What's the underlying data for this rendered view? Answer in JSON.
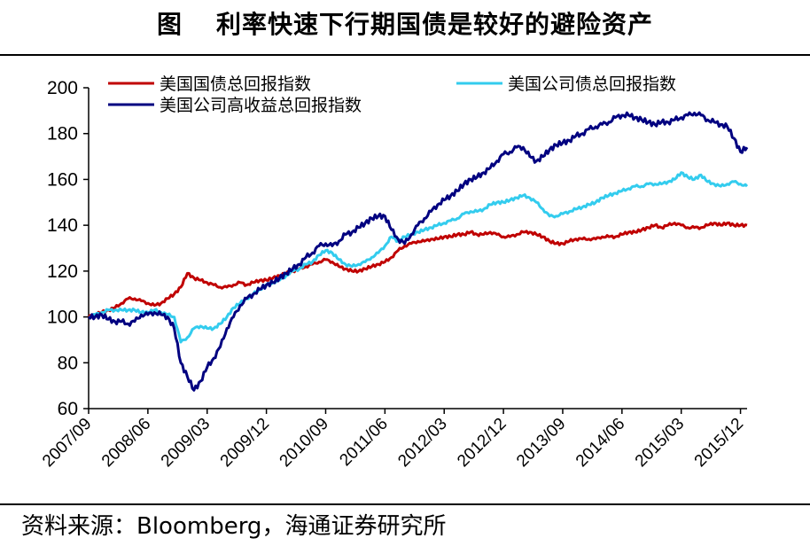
{
  "title": {
    "figure": "图",
    "text": "利率快速下行期国债是较好的避险资产"
  },
  "source": "资料来源：Bloomberg，海通证券研究所",
  "chart_data": {
    "type": "line",
    "title": "利率快速下行期国债是较好的避险资产",
    "xlabel": "",
    "ylabel": "",
    "ylim": [
      60,
      200
    ],
    "yticks": [
      60,
      80,
      100,
      120,
      140,
      160,
      180,
      200
    ],
    "xlim": [
      0,
      100
    ],
    "xtick_labels": [
      "2007/09",
      "2008/06",
      "2009/03",
      "2009/12",
      "2010/09",
      "2011/06",
      "2012/03",
      "2012/12",
      "2013/09",
      "2014/06",
      "2015/03",
      "2015/12"
    ],
    "xtick_months": [
      0,
      9,
      18,
      27,
      36,
      45,
      54,
      63,
      72,
      81,
      90,
      99
    ],
    "x_unit_note": "",
    "legend_position": "top",
    "grid": false,
    "series": [
      {
        "name": "美国国债总回报指数",
        "color": "#c00000",
        "points": [
          [
            0,
            100
          ],
          [
            1,
            101
          ],
          [
            2,
            102
          ],
          [
            3,
            103
          ],
          [
            4,
            104
          ],
          [
            5,
            106
          ],
          [
            6,
            108
          ],
          [
            7,
            108
          ],
          [
            8,
            107
          ],
          [
            9,
            106
          ],
          [
            10,
            105
          ],
          [
            11,
            106
          ],
          [
            12,
            108
          ],
          [
            13,
            110
          ],
          [
            14,
            113
          ],
          [
            15,
            119
          ],
          [
            16,
            117
          ],
          [
            17,
            116
          ],
          [
            18,
            115
          ],
          [
            19,
            114
          ],
          [
            20,
            113
          ],
          [
            21,
            113
          ],
          [
            22,
            114
          ],
          [
            23,
            115
          ],
          [
            24,
            114
          ],
          [
            25,
            115
          ],
          [
            26,
            116
          ],
          [
            27,
            116
          ],
          [
            28,
            117
          ],
          [
            29,
            118
          ],
          [
            30,
            119
          ],
          [
            31,
            120
          ],
          [
            32,
            121
          ],
          [
            33,
            122
          ],
          [
            34,
            123
          ],
          [
            35,
            124
          ],
          [
            36,
            125
          ],
          [
            37,
            124
          ],
          [
            38,
            122
          ],
          [
            39,
            121
          ],
          [
            40,
            120
          ],
          [
            41,
            120
          ],
          [
            42,
            121
          ],
          [
            43,
            122
          ],
          [
            44,
            123
          ],
          [
            45,
            124
          ],
          [
            46,
            126
          ],
          [
            47,
            129
          ],
          [
            48,
            131
          ],
          [
            49,
            132
          ],
          [
            50,
            133
          ],
          [
            51,
            133
          ],
          [
            52,
            134
          ],
          [
            53,
            134
          ],
          [
            54,
            135
          ],
          [
            55,
            135
          ],
          [
            56,
            136
          ],
          [
            57,
            136
          ],
          [
            58,
            137
          ],
          [
            59,
            136
          ],
          [
            60,
            136
          ],
          [
            61,
            137
          ],
          [
            62,
            136
          ],
          [
            63,
            135
          ],
          [
            64,
            135
          ],
          [
            65,
            136
          ],
          [
            66,
            137
          ],
          [
            67,
            137
          ],
          [
            68,
            136
          ],
          [
            69,
            135
          ],
          [
            70,
            133
          ],
          [
            71,
            132
          ],
          [
            72,
            132
          ],
          [
            73,
            133
          ],
          [
            74,
            134
          ],
          [
            75,
            134
          ],
          [
            76,
            134
          ],
          [
            77,
            134
          ],
          [
            78,
            135
          ],
          [
            79,
            135
          ],
          [
            80,
            135
          ],
          [
            81,
            136
          ],
          [
            82,
            137
          ],
          [
            83,
            137
          ],
          [
            84,
            138
          ],
          [
            85,
            139
          ],
          [
            86,
            140
          ],
          [
            87,
            139
          ],
          [
            88,
            140
          ],
          [
            89,
            141
          ],
          [
            90,
            140
          ],
          [
            91,
            139
          ],
          [
            92,
            139
          ],
          [
            93,
            139
          ],
          [
            94,
            140
          ],
          [
            95,
            141
          ],
          [
            96,
            140
          ],
          [
            97,
            141
          ],
          [
            98,
            140
          ],
          [
            99,
            140
          ],
          [
            100,
            140
          ]
        ]
      },
      {
        "name": "美国公司债总回报指数",
        "color": "#33ccee",
        "points": [
          [
            0,
            100
          ],
          [
            1,
            101
          ],
          [
            2,
            102
          ],
          [
            3,
            103
          ],
          [
            4,
            103
          ],
          [
            5,
            103
          ],
          [
            6,
            103
          ],
          [
            7,
            103
          ],
          [
            8,
            102
          ],
          [
            9,
            102
          ],
          [
            10,
            103
          ],
          [
            11,
            102
          ],
          [
            12,
            101
          ],
          [
            13,
            100
          ],
          [
            14,
            89
          ],
          [
            15,
            91
          ],
          [
            16,
            95
          ],
          [
            17,
            96
          ],
          [
            18,
            95
          ],
          [
            19,
            95
          ],
          [
            20,
            97
          ],
          [
            21,
            100
          ],
          [
            22,
            104
          ],
          [
            23,
            106
          ],
          [
            24,
            108
          ],
          [
            25,
            110
          ],
          [
            26,
            112
          ],
          [
            27,
            114
          ],
          [
            28,
            115
          ],
          [
            29,
            116
          ],
          [
            30,
            118
          ],
          [
            31,
            120
          ],
          [
            32,
            121
          ],
          [
            33,
            123
          ],
          [
            34,
            124
          ],
          [
            35,
            127
          ],
          [
            36,
            129
          ],
          [
            37,
            128
          ],
          [
            38,
            125
          ],
          [
            39,
            123
          ],
          [
            40,
            122
          ],
          [
            41,
            123
          ],
          [
            42,
            124
          ],
          [
            43,
            126
          ],
          [
            44,
            128
          ],
          [
            45,
            131
          ],
          [
            46,
            135
          ],
          [
            47,
            133
          ],
          [
            48,
            135
          ],
          [
            49,
            136
          ],
          [
            50,
            137
          ],
          [
            51,
            138
          ],
          [
            52,
            139
          ],
          [
            53,
            140
          ],
          [
            54,
            141
          ],
          [
            55,
            142
          ],
          [
            56,
            143
          ],
          [
            57,
            145
          ],
          [
            58,
            146
          ],
          [
            59,
            146
          ],
          [
            60,
            147
          ],
          [
            61,
            149
          ],
          [
            62,
            150
          ],
          [
            63,
            150
          ],
          [
            64,
            151
          ],
          [
            65,
            152
          ],
          [
            66,
            153
          ],
          [
            67,
            152
          ],
          [
            68,
            150
          ],
          [
            69,
            147
          ],
          [
            70,
            144
          ],
          [
            71,
            144
          ],
          [
            72,
            145
          ],
          [
            73,
            146
          ],
          [
            74,
            147
          ],
          [
            75,
            148
          ],
          [
            76,
            149
          ],
          [
            77,
            150
          ],
          [
            78,
            152
          ],
          [
            79,
            153
          ],
          [
            80,
            154
          ],
          [
            81,
            155
          ],
          [
            82,
            156
          ],
          [
            83,
            157
          ],
          [
            84,
            157
          ],
          [
            85,
            158
          ],
          [
            86,
            158
          ],
          [
            87,
            158
          ],
          [
            88,
            159
          ],
          [
            89,
            160
          ],
          [
            90,
            163
          ],
          [
            91,
            161
          ],
          [
            92,
            160
          ],
          [
            93,
            162
          ],
          [
            94,
            159
          ],
          [
            95,
            158
          ],
          [
            96,
            157
          ],
          [
            97,
            158
          ],
          [
            98,
            159
          ],
          [
            99,
            158
          ],
          [
            100,
            157
          ]
        ]
      },
      {
        "name": "美国公司高收益总回报指数",
        "color": "#000080",
        "points": [
          [
            0,
            100
          ],
          [
            1,
            100
          ],
          [
            2,
            101
          ],
          [
            3,
            99
          ],
          [
            4,
            98
          ],
          [
            5,
            98
          ],
          [
            6,
            97
          ],
          [
            7,
            98
          ],
          [
            8,
            101
          ],
          [
            9,
            101
          ],
          [
            10,
            102
          ],
          [
            11,
            101
          ],
          [
            12,
            100
          ],
          [
            13,
            95
          ],
          [
            14,
            80
          ],
          [
            15,
            74
          ],
          [
            16,
            68
          ],
          [
            17,
            72
          ],
          [
            18,
            78
          ],
          [
            19,
            82
          ],
          [
            20,
            87
          ],
          [
            21,
            95
          ],
          [
            22,
            100
          ],
          [
            23,
            105
          ],
          [
            24,
            108
          ],
          [
            25,
            110
          ],
          [
            26,
            112
          ],
          [
            27,
            114
          ],
          [
            28,
            115
          ],
          [
            29,
            117
          ],
          [
            30,
            119
          ],
          [
            31,
            121
          ],
          [
            32,
            123
          ],
          [
            33,
            126
          ],
          [
            34,
            128
          ],
          [
            35,
            131
          ],
          [
            36,
            132
          ],
          [
            37,
            131
          ],
          [
            38,
            133
          ],
          [
            39,
            136
          ],
          [
            40,
            137
          ],
          [
            41,
            139
          ],
          [
            42,
            141
          ],
          [
            43,
            143
          ],
          [
            44,
            144
          ],
          [
            45,
            144
          ],
          [
            46,
            138
          ],
          [
            47,
            134
          ],
          [
            48,
            132
          ],
          [
            49,
            136
          ],
          [
            50,
            140
          ],
          [
            51,
            143
          ],
          [
            52,
            146
          ],
          [
            53,
            149
          ],
          [
            54,
            151
          ],
          [
            55,
            153
          ],
          [
            56,
            155
          ],
          [
            57,
            158
          ],
          [
            58,
            160
          ],
          [
            59,
            161
          ],
          [
            60,
            163
          ],
          [
            61,
            165
          ],
          [
            62,
            168
          ],
          [
            63,
            171
          ],
          [
            64,
            172
          ],
          [
            65,
            174
          ],
          [
            66,
            174
          ],
          [
            67,
            170
          ],
          [
            68,
            168
          ],
          [
            69,
            170
          ],
          [
            70,
            173
          ],
          [
            71,
            175
          ],
          [
            72,
            176
          ],
          [
            73,
            177
          ],
          [
            74,
            179
          ],
          [
            75,
            180
          ],
          [
            76,
            182
          ],
          [
            77,
            183
          ],
          [
            78,
            184
          ],
          [
            79,
            185
          ],
          [
            80,
            187
          ],
          [
            81,
            188
          ],
          [
            82,
            188
          ],
          [
            83,
            187
          ],
          [
            84,
            186
          ],
          [
            85,
            185
          ],
          [
            86,
            184
          ],
          [
            87,
            185
          ],
          [
            88,
            185
          ],
          [
            89,
            186
          ],
          [
            90,
            187
          ],
          [
            91,
            188
          ],
          [
            92,
            189
          ],
          [
            93,
            188
          ],
          [
            94,
            186
          ],
          [
            95,
            185
          ],
          [
            96,
            184
          ],
          [
            97,
            183
          ],
          [
            98,
            178
          ],
          [
            99,
            172
          ],
          [
            100,
            174
          ]
        ]
      }
    ]
  }
}
